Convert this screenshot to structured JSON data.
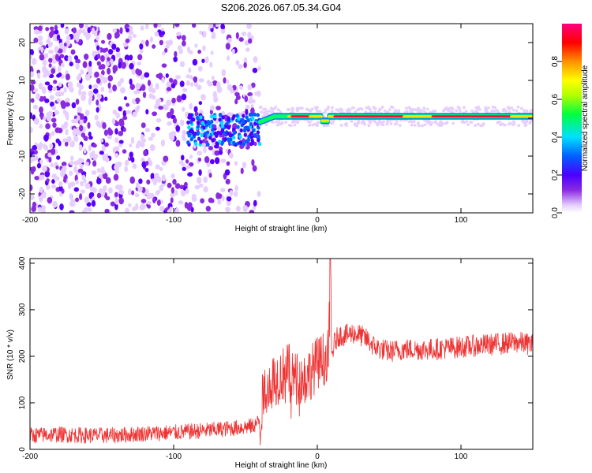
{
  "figure_title": "S206.2026.067.05.34.G04",
  "chart_data": [
    {
      "type": "heatmap",
      "xlabel": "Height of straight line (km)",
      "ylabel": "Frequency (Hz)",
      "xlim": [
        -200,
        150
      ],
      "ylim": [
        -25,
        25
      ],
      "xticks": [
        -200,
        -100,
        0,
        100
      ],
      "yticks": [
        -20,
        -10,
        0,
        10,
        20
      ],
      "colorbar": {
        "label": "Normalized spectral amplitude",
        "range": [
          0.0,
          1.0
        ],
        "ticks": [
          "0.0",
          "0.2",
          "0.4",
          "0.6",
          "0.8"
        ],
        "colormap": "rainbow (magenta-blue-cyan-green-yellow-red)",
        "colors": [
          "#ffffff",
          "#e6cfff",
          "#8a2be2",
          "#4b00ff",
          "#0060ff",
          "#00e0ff",
          "#00ff40",
          "#b0ff00",
          "#ffff00",
          "#ff9000",
          "#ff0000",
          "#ff0080"
        ]
      },
      "features": [
        {
          "x_range": [
            -200,
            -40
          ],
          "description": "broadband noise scattered over all frequencies"
        },
        {
          "x_range": [
            -90,
            -40
          ],
          "y_center": -3,
          "description": "weak signal band"
        },
        {
          "x_range": [
            -40,
            150
          ],
          "y_center": 0.5,
          "description": "strong narrow carrier line near 0 Hz"
        }
      ],
      "grid": false
    },
    {
      "type": "line",
      "xlabel": "Height of straight line (km)",
      "ylabel": "SNR (10 * v/v)",
      "xlim": [
        -200,
        150
      ],
      "ylim": [
        0,
        410
      ],
      "xticks": [
        -200,
        -100,
        0,
        100
      ],
      "yticks": [
        0,
        100,
        200,
        300,
        400
      ],
      "series": [
        {
          "color": "#ee3333",
          "x": [
            -200,
            -180,
            -160,
            -140,
            -120,
            -100,
            -80,
            -60,
            -45,
            -40,
            -38,
            -35,
            -30,
            -25,
            -20,
            -15,
            -10,
            -5,
            0,
            5,
            8,
            9,
            10,
            12,
            15,
            20,
            25,
            30,
            35,
            40,
            50,
            60,
            80,
            100,
            120,
            140,
            150
          ],
          "values": [
            30,
            32,
            30,
            30,
            34,
            36,
            40,
            45,
            50,
            60,
            110,
            140,
            150,
            160,
            170,
            150,
            150,
            165,
            185,
            195,
            220,
            410,
            200,
            230,
            245,
            245,
            250,
            245,
            235,
            220,
            210,
            215,
            215,
            220,
            225,
            230,
            225
          ]
        }
      ],
      "grid": false
    }
  ]
}
